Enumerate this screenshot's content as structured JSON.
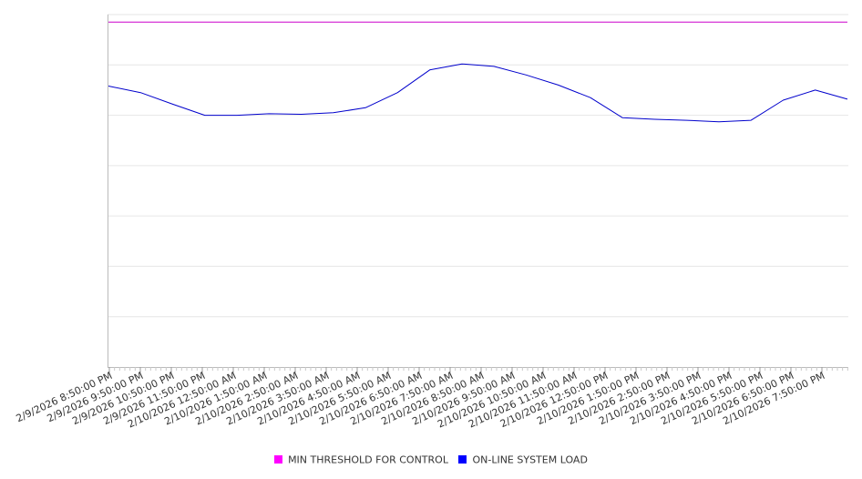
{
  "chart_data": {
    "type": "line",
    "title": "",
    "xlabel": "",
    "ylabel": "",
    "x_tick_labels": [
      "2/9/2026 8:50:00 PM",
      "2/9/2026 9:50:00 PM",
      "2/9/2026 10:50:00 PM",
      "2/9/2026 11:50:00 PM",
      "2/10/2026 12:50:00 AM",
      "2/10/2026 1:50:00 AM",
      "2/10/2026 2:50:00 AM",
      "2/10/2026 3:50:00 AM",
      "2/10/2026 4:50:00 AM",
      "2/10/2026 5:50:00 AM",
      "2/10/2026 6:50:00 AM",
      "2/10/2026 7:50:00 AM",
      "2/10/2026 8:50:00 AM",
      "2/10/2026 9:50:00 AM",
      "2/10/2026 10:50:00 AM",
      "2/10/2026 11:50:00 AM",
      "2/10/2026 12:50:00 PM",
      "2/10/2026 1:50:00 PM",
      "2/10/2026 2:50:00 PM",
      "2/10/2026 3:50:00 PM",
      "2/10/2026 4:50:00 PM",
      "2/10/2026 5:50:00 PM",
      "2/10/2026 6:50:00 PM",
      "2/10/2026 7:50:00 PM"
    ],
    "y_range": [
      0,
      7
    ],
    "y_gridlines": 7,
    "y_tick_labels_visible": false,
    "grid": true,
    "legend_position": "bottom-center",
    "series": [
      {
        "name": "MIN THRESHOLD FOR CONTROL",
        "color": "#cc00cc",
        "values": [
          6.85,
          6.85,
          6.85,
          6.85,
          6.85,
          6.85,
          6.85,
          6.85,
          6.85,
          6.85,
          6.85,
          6.85,
          6.85,
          6.85,
          6.85,
          6.85,
          6.85,
          6.85,
          6.85,
          6.85,
          6.85,
          6.85,
          6.85,
          6.85
        ]
      },
      {
        "name": "ON-LINE SYSTEM LOAD",
        "color": "#0000cc",
        "values": [
          5.58,
          5.45,
          5.22,
          5.0,
          5.0,
          5.03,
          5.02,
          5.05,
          5.15,
          5.45,
          5.9,
          6.02,
          5.97,
          5.8,
          5.6,
          5.35,
          4.95,
          4.92,
          4.9,
          4.87,
          4.9,
          5.3,
          5.5,
          5.32
        ]
      }
    ]
  },
  "legend": [
    {
      "label": "MIN THRESHOLD FOR CONTROL",
      "color": "#ff00ff"
    },
    {
      "label": "ON-LINE SYSTEM LOAD",
      "color": "#0000ff"
    }
  ]
}
